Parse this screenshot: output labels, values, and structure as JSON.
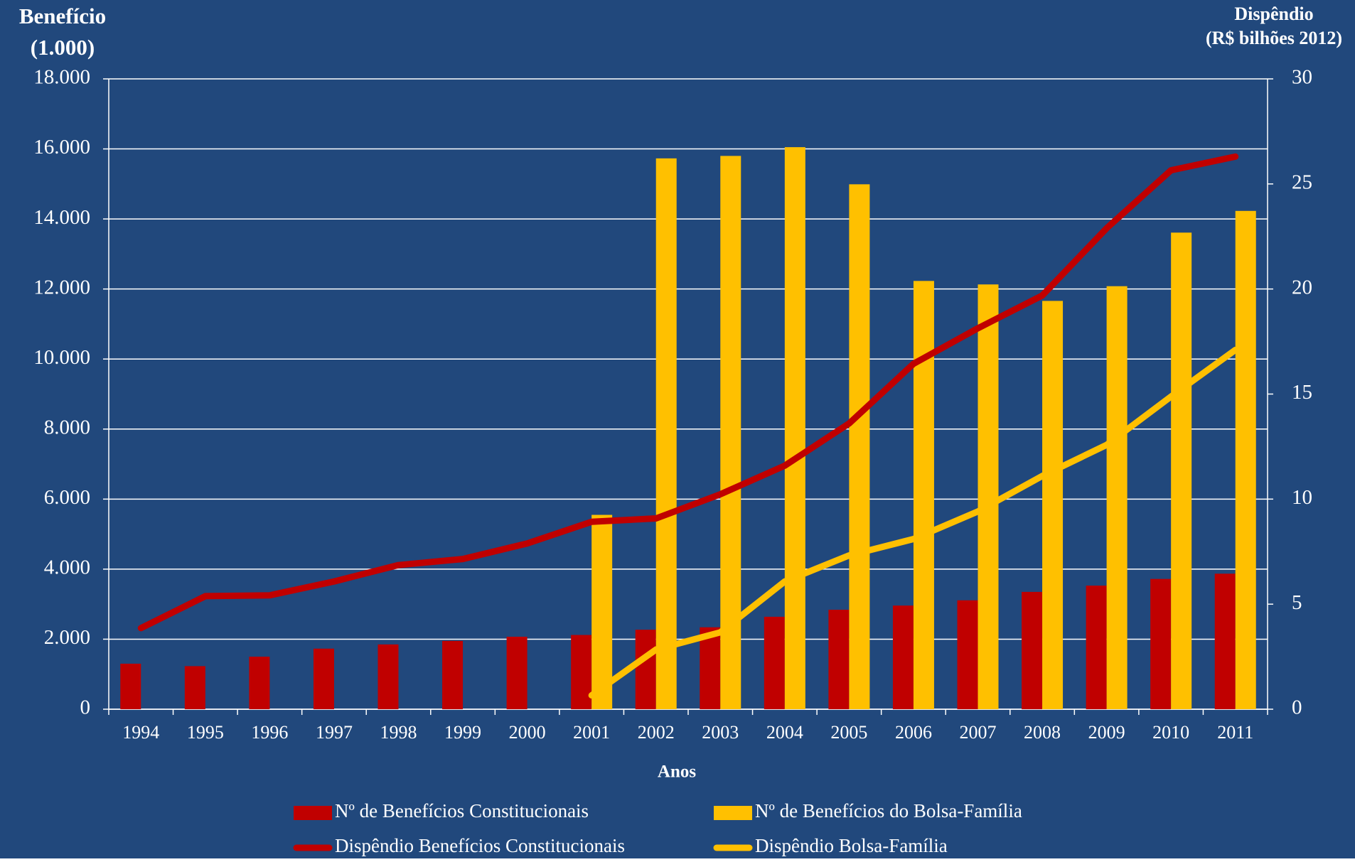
{
  "chart_data": {
    "type": "bar",
    "y_label_lines": [
      "Benefício",
      "(1.000)"
    ],
    "y2_label_lines": [
      "Dispêndio",
      "(R$ bilhões 2012)"
    ],
    "x_label": "Anos",
    "categories": [
      "1994",
      "1995",
      "1996",
      "1997",
      "1998",
      "1999",
      "2000",
      "2001",
      "2002",
      "2003",
      "2004",
      "2005",
      "2006",
      "2007",
      "2008",
      "2009",
      "2010",
      "2011"
    ],
    "series": [
      {
        "name": "Nº de Benefícios Constitucionais",
        "type": "bar",
        "color": "#c00000",
        "values": [
          1300,
          1230,
          1500,
          1730,
          1850,
          1950,
          2070,
          2120,
          2270,
          2340,
          2640,
          2840,
          2960,
          3110,
          3350,
          3530,
          3720,
          3870
        ]
      },
      {
        "name": "Nº de Benefícios do Bolsa-Família",
        "type": "bar",
        "color": "#ffc000",
        "values": [
          null,
          null,
          null,
          null,
          null,
          null,
          null,
          5550,
          15730,
          15800,
          16050,
          14990,
          12230,
          12130,
          11660,
          12080,
          13610,
          14230
        ]
      },
      {
        "name": "Dispêndio Benefícios  Constitucionais",
        "type": "line",
        "axis": "y2",
        "color": "#c00000",
        "values": [
          3.86,
          5.38,
          5.42,
          6.08,
          6.86,
          7.15,
          7.89,
          8.92,
          9.08,
          10.23,
          11.59,
          13.6,
          16.44,
          18.13,
          19.69,
          22.89,
          25.65,
          26.3
        ]
      },
      {
        "name": "Dispêndio Bolsa-Família",
        "type": "line",
        "axis": "y2",
        "color": "#ffc000",
        "values": [
          null,
          null,
          null,
          null,
          null,
          null,
          null,
          0.66,
          2.84,
          3.66,
          6.08,
          7.32,
          8.1,
          9.41,
          11.1,
          12.58,
          14.88,
          17.1
        ]
      }
    ],
    "ylim": [
      0,
      18000
    ],
    "yticks": [
      0,
      {
        "value": 2000,
        "label": "2.000"
      },
      {
        "value": 4000,
        "label": "4.000"
      },
      {
        "value": 6000,
        "label": "6.000"
      },
      {
        "value": 8000,
        "label": "8.000"
      },
      {
        "value": 10000,
        "label": "10.000"
      },
      {
        "value": 12000,
        "label": "12.000"
      },
      {
        "value": 14000,
        "label": "14.000"
      },
      {
        "value": 16000,
        "label": "16.000"
      },
      {
        "value": 18000,
        "label": "18.000"
      }
    ],
    "y2lim": [
      0,
      30
    ],
    "y2ticks": [
      0,
      5,
      10,
      15,
      20,
      25,
      30
    ],
    "grid": true,
    "background": "#21487c"
  }
}
